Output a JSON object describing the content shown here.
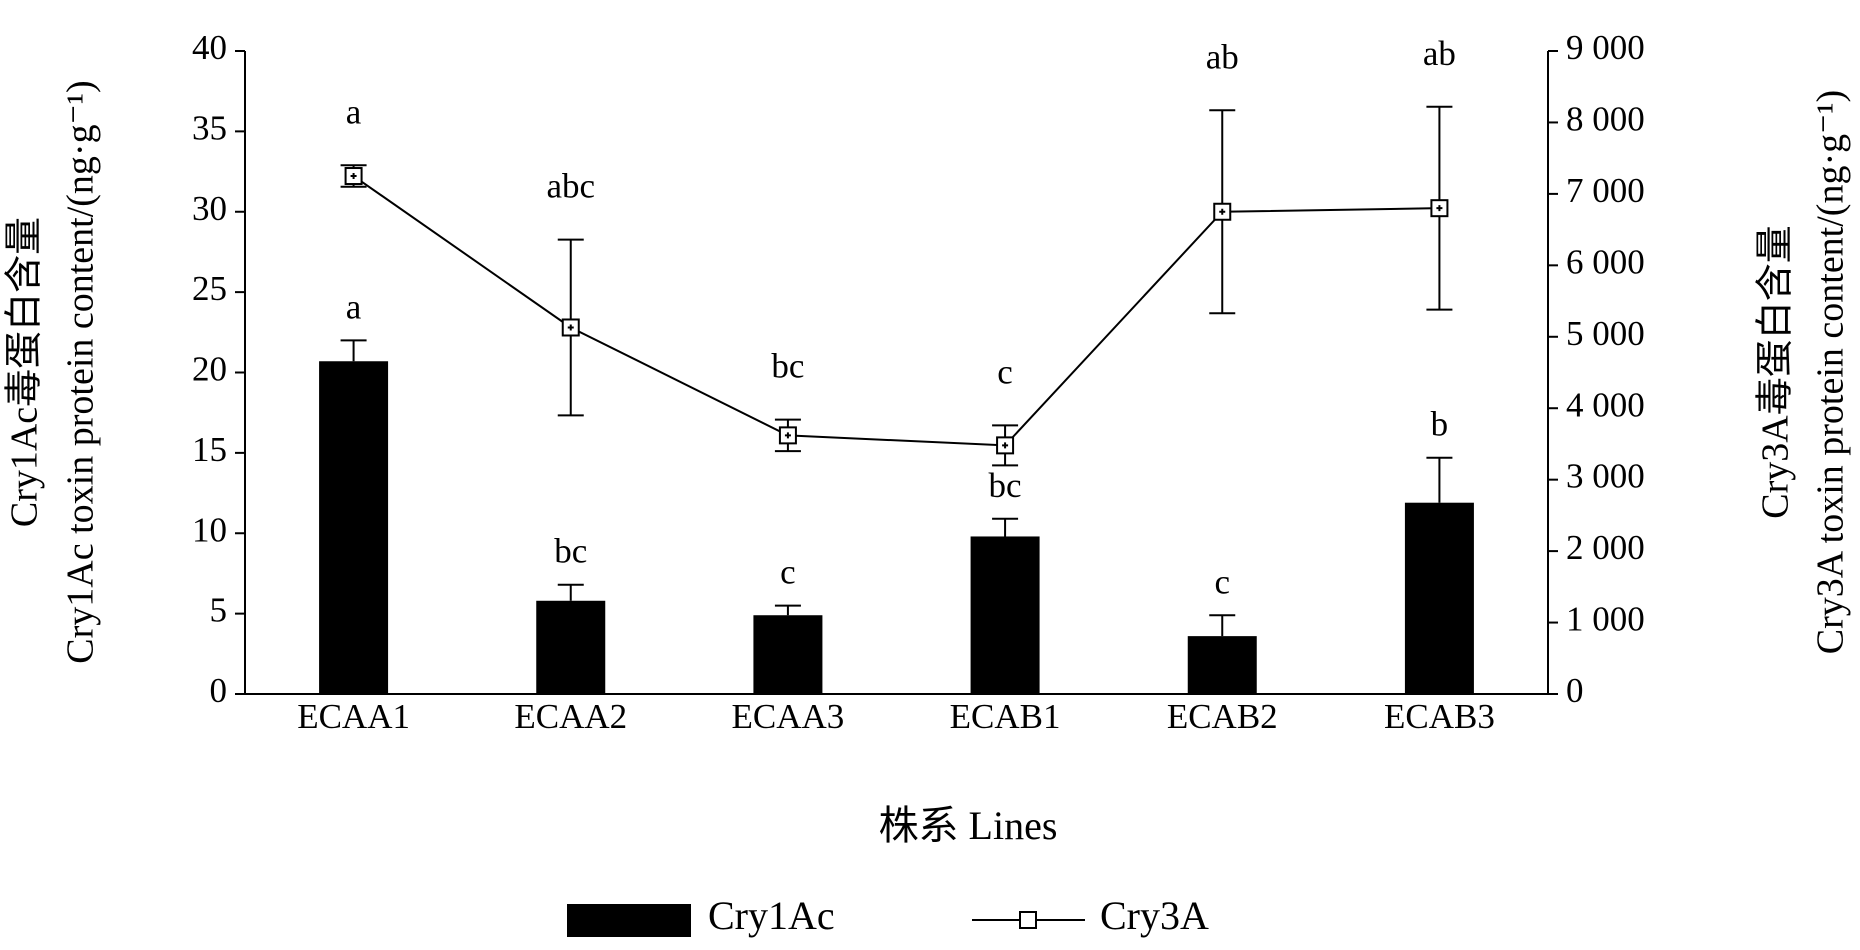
{
  "chart_data": {
    "type": "bar-line",
    "categories": [
      "ECAA1",
      "ECAA2",
      "ECAA3",
      "ECAB1",
      "ECAB2",
      "ECAB3"
    ],
    "x_label": "株系  Lines",
    "y_label": [
      "Cry1Ac毒蛋白含量",
      "Cry1Ac toxin protein content/(ng·g⁻¹)"
    ],
    "y2_label": [
      "Cry3A毒蛋白含量",
      "Cry3A toxin protein content/(ng·g⁻¹)"
    ],
    "ylim": [
      0,
      40
    ],
    "yticks": [
      0,
      5,
      10,
      15,
      20,
      25,
      30,
      35,
      40
    ],
    "y2lim": [
      0,
      9000
    ],
    "y2ticks": [
      0,
      {
        "value": 1000,
        "label": "1 000"
      },
      {
        "value": 2000,
        "label": "2 000"
      },
      {
        "value": 3000,
        "label": "3 000"
      },
      {
        "value": 4000,
        "label": "4 000"
      },
      {
        "value": 5000,
        "label": "5 000"
      },
      {
        "value": 6000,
        "label": "6 000"
      },
      {
        "value": 7000,
        "label": "7 000"
      },
      {
        "value": 8000,
        "label": "8 000"
      },
      {
        "value": 9000,
        "label": "9 000"
      }
    ],
    "series": [
      {
        "name": "Cry1Ac",
        "type": "bar",
        "color": "#000000",
        "values": [
          20.7,
          5.8,
          4.9,
          9.8,
          3.6,
          11.9
        ],
        "errors": [
          1.3,
          1.0,
          0.6,
          1.1,
          1.3,
          2.8
        ],
        "significance": [
          "a",
          "bc",
          "c",
          "bc",
          "c",
          "b"
        ]
      },
      {
        "name": "Cry3A",
        "type": "line",
        "axis": "y2",
        "color": "#000000",
        "values": [
          7250,
          5130,
          3620,
          3480,
          6750,
          6800
        ],
        "errors": [
          150,
          1230,
          220,
          280,
          1420,
          1420
        ],
        "significance": [
          "a",
          "abc",
          "bc",
          "c",
          "ab",
          "ab"
        ]
      }
    ]
  }
}
